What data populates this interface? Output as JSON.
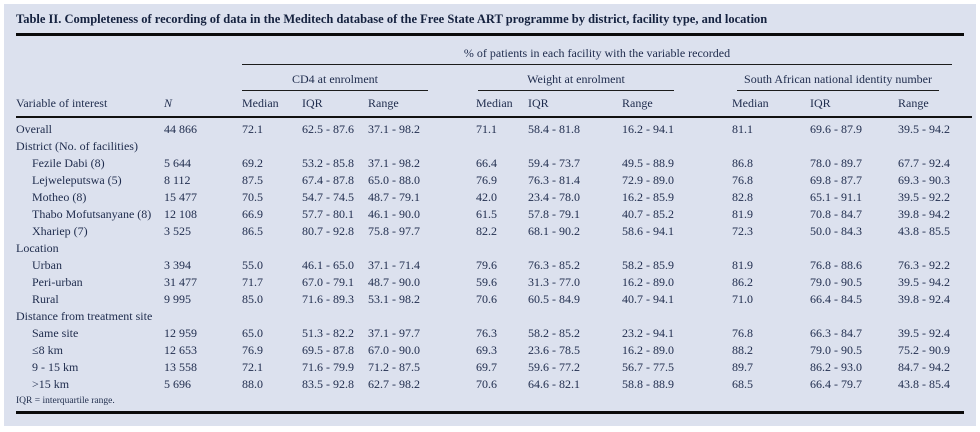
{
  "table": {
    "title": "Table II. Completeness of recording of data in the Meditech database of the Free State ART programme by district, facility type, and location",
    "span_header": "% of patients in each facility with the variable recorded",
    "groups": [
      "CD4 at enrolment",
      "Weight at enrolment",
      "South African national identity number"
    ],
    "columns": [
      "Variable of interest",
      "N",
      "Median",
      "IQR",
      "Range",
      "Median",
      "IQR",
      "Range",
      "Median",
      "IQR",
      "Range"
    ],
    "rows": [
      {
        "type": "data",
        "indent": false,
        "label": "Overall",
        "values": [
          "44 866",
          "72.1",
          "62.5 - 87.6",
          "37.1 - 98.2",
          "71.1",
          "58.4 - 81.8",
          "16.2 - 94.1",
          "81.1",
          "69.6 - 87.9",
          "39.5 - 94.2"
        ]
      },
      {
        "type": "section",
        "label": "District (No. of facilities)"
      },
      {
        "type": "data",
        "indent": true,
        "label": "Fezile Dabi (8)",
        "values": [
          "5 644",
          "69.2",
          "53.2 - 85.8",
          "37.1 - 98.2",
          "66.4",
          "59.4 - 73.7",
          "49.5 - 88.9",
          "86.8",
          "78.0 - 89.7",
          "67.7 - 92.4"
        ]
      },
      {
        "type": "data",
        "indent": true,
        "label": "Lejweleputswa (5)",
        "values": [
          "8 112",
          "87.5",
          "67.4 - 87.8",
          "65.0 - 88.0",
          "76.9",
          "76.3 - 81.4",
          "72.9 - 89.0",
          "76.8",
          "69.8 - 87.7",
          "69.3 - 90.3"
        ]
      },
      {
        "type": "data",
        "indent": true,
        "label": "Motheo (8)",
        "values": [
          "15 477",
          "70.5",
          "54.7 - 74.5",
          "48.7 - 79.1",
          "42.0",
          "23.4 - 78.0",
          "16.2 - 85.9",
          "82.8",
          "65.1 - 91.1",
          "39.5 - 92.2"
        ]
      },
      {
        "type": "data",
        "indent": true,
        "label": "Thabo Mofutsanyane (8)",
        "values": [
          "12 108",
          "66.9",
          "57.7 - 80.1",
          "46.1 - 90.0",
          "61.5",
          "57.8 - 79.1",
          "40.7 - 85.2",
          "81.9",
          "70.8 - 84.7",
          "39.8 - 94.2"
        ]
      },
      {
        "type": "data",
        "indent": true,
        "label": "Xhariep (7)",
        "values": [
          "3 525",
          "86.5",
          "80.7 - 92.8",
          "75.8 - 97.7",
          "82.2",
          "68.1 - 90.2",
          "58.6 - 94.1",
          "72.3",
          "50.0 - 84.3",
          "43.8 - 85.5"
        ]
      },
      {
        "type": "section",
        "label": "Location"
      },
      {
        "type": "data",
        "indent": true,
        "label": "Urban",
        "values": [
          "3 394",
          "55.0",
          "46.1 - 65.0",
          "37.1 - 71.4",
          "79.6",
          "76.3 - 85.2",
          "58.2 - 85.9",
          "81.9",
          "76.8 - 88.6",
          "76.3 - 92.2"
        ]
      },
      {
        "type": "data",
        "indent": true,
        "label": "Peri-urban",
        "values": [
          "31 477",
          "71.7",
          "67.0 - 79.1",
          "48.7 - 90.0",
          "59.6",
          "31.3 - 77.0",
          "16.2 - 89.0",
          "86.2",
          "79.0 - 90.5",
          "39.5 - 94.2"
        ]
      },
      {
        "type": "data",
        "indent": true,
        "label": "Rural",
        "values": [
          "9 995",
          "85.0",
          "71.6 - 89.3",
          "53.1 - 98.2",
          "70.6",
          "60.5 - 84.9",
          "40.7 - 94.1",
          "71.0",
          "66.4 - 84.5",
          "39.8 - 92.4"
        ]
      },
      {
        "type": "section",
        "label": "Distance from treatment site"
      },
      {
        "type": "data",
        "indent": true,
        "label": "Same site",
        "values": [
          "12 959",
          "65.0",
          "51.3 - 82.2",
          "37.1 - 97.7",
          "76.3",
          "58.2 - 85.2",
          "23.2 - 94.1",
          "76.8",
          "66.3 - 84.7",
          "39.5 - 92.4"
        ]
      },
      {
        "type": "data",
        "indent": true,
        "label": "≤8 km",
        "values": [
          "12 653",
          "76.9",
          "69.5 - 87.8",
          "67.0 - 90.0",
          "69.3",
          "23.6 - 78.5",
          "16.2 - 89.0",
          "88.2",
          "79.0 - 90.5",
          "75.2 - 90.9"
        ]
      },
      {
        "type": "data",
        "indent": true,
        "label": "9 - 15 km",
        "values": [
          "13 558",
          "72.1",
          "71.6 - 79.9",
          "71.2 - 87.5",
          "69.7",
          "59.6 - 77.2",
          "56.7 - 77.5",
          "89.7",
          "86.2 - 93.0",
          "84.7 - 94.2"
        ]
      },
      {
        "type": "data",
        "indent": true,
        "label": ">15 km",
        "values": [
          "5 696",
          "88.0",
          "83.5 - 92.8",
          "62.7 - 98.2",
          "70.6",
          "64.6 - 82.1",
          "58.8 - 88.9",
          "68.5",
          "66.4 - 79.7",
          "43.8 - 85.4"
        ]
      }
    ],
    "footnote": "IQR = interquartile range."
  },
  "colors": {
    "panel_background": "#dce1ee",
    "text": "#1e2b4c",
    "rule": "#0a0a0a"
  }
}
